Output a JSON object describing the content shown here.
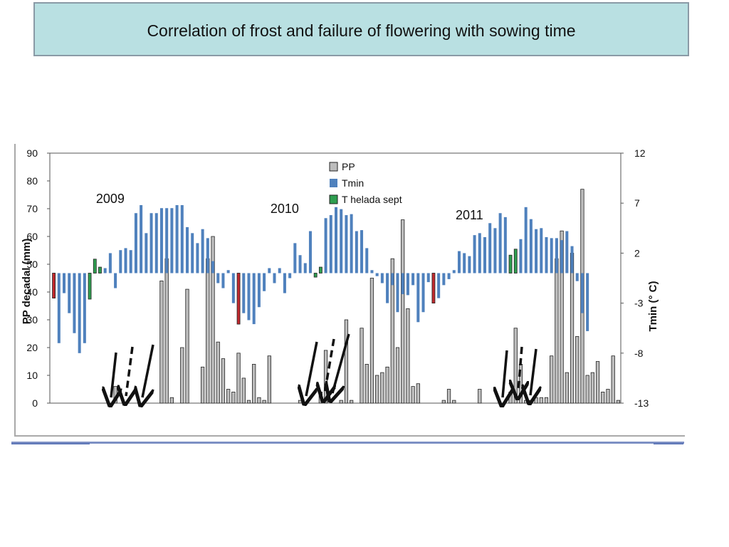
{
  "slide": {
    "title": "Correlation of frost and failure of flowering with sowing time"
  },
  "chart_data": {
    "type": "bar",
    "xlabel": "",
    "ylabel_left": "PP decadal (mm)",
    "ylabel_right": "Tmin (° C)",
    "ylim_left": [
      0,
      90
    ],
    "ylim_right": [
      -13,
      12
    ],
    "yticks_left": [
      "0",
      "10",
      "20",
      "30",
      "40",
      "50",
      "60",
      "70",
      "80",
      "90"
    ],
    "yticks_right": [
      "-13",
      "-8",
      "-3",
      "2",
      "7",
      "12"
    ],
    "tmin_baseline": 0,
    "grid": false,
    "legend_position": "top-center",
    "legend": [
      "PP",
      "Tmin",
      "T helada sept"
    ],
    "colors": {
      "PP": "#bdbdbd",
      "Tmin": "#4f81bd",
      "helada": "#2e9e4f",
      "frost_red": "#c0282d"
    },
    "year_labels": [
      {
        "text": "2009",
        "decade": 11
      },
      {
        "text": "2010",
        "decade": 45
      },
      {
        "text": "2011",
        "decade": 81
      }
    ],
    "pp": [
      0,
      0,
      0,
      0,
      0,
      0,
      0,
      0,
      0,
      0,
      0,
      0,
      6,
      0,
      0,
      0,
      0,
      0,
      0,
      0,
      0,
      44,
      52,
      2,
      0,
      20,
      41,
      0,
      0,
      13,
      52,
      60,
      22,
      16,
      5,
      4,
      18,
      9,
      1,
      14,
      2,
      1,
      17,
      0,
      0,
      0,
      0,
      0,
      1,
      0,
      0,
      0,
      4,
      19,
      0,
      0,
      1,
      30,
      1,
      0,
      27,
      14,
      45,
      10,
      11,
      13,
      52,
      20,
      66,
      34,
      6,
      7,
      0,
      0,
      0,
      0,
      1,
      5,
      1,
      0,
      0,
      0,
      0,
      5,
      0,
      0,
      0,
      0,
      0,
      4,
      27,
      14,
      1,
      1,
      2,
      2,
      2,
      17,
      52,
      62,
      11,
      54,
      24,
      77,
      10,
      11,
      15,
      4,
      5,
      17,
      1
    ],
    "tmin": [
      -2,
      -7,
      -2,
      -4,
      -6,
      -8,
      -7,
      -4,
      0.5,
      -2,
      0.5,
      2,
      -1.5,
      2.3,
      2.5,
      2.3,
      6,
      6.8,
      4,
      6,
      6,
      6.5,
      6.5,
      6.5,
      6.8,
      6.8,
      4.6,
      4,
      3,
      4.4,
      3.5,
      1.2,
      -1,
      -1.5,
      0.3,
      -3,
      -2.6,
      -4,
      -4.7,
      -5.1,
      -3.4,
      -1.8,
      0.5,
      -1,
      0.5,
      -2,
      -0.5,
      3,
      1.8,
      1,
      4.2,
      6,
      5.5,
      5.5,
      5.8,
      6.6,
      6.4,
      5.8,
      5.9,
      4.2,
      4.3,
      2.5,
      0.3,
      -0.3,
      -1,
      -3,
      -1.2,
      -3.9,
      -2.1,
      -2.2,
      -1.2,
      -4.9,
      -3.9,
      -0.9,
      -2.4,
      -2.5,
      -1.2,
      -0.6,
      0.3,
      2.2,
      2,
      1.7,
      3.8,
      4,
      3.6,
      5,
      4.5,
      6,
      5.6,
      4.2,
      4.8,
      3.4,
      6.6,
      5.4,
      4.4,
      4.5,
      3.6,
      3.5,
      3.5,
      3.3,
      4.2,
      2.7,
      -0.8,
      -4,
      -5.8
    ],
    "helada": {
      "7": -2.6,
      "8": 1.4,
      "9": 0.6,
      "51": -0.4,
      "52": 0.6,
      "89": 1.8,
      "90": 2.4
    },
    "frost_red": {
      "0": -2.5,
      "36": -5.1,
      "74": -3
    }
  }
}
